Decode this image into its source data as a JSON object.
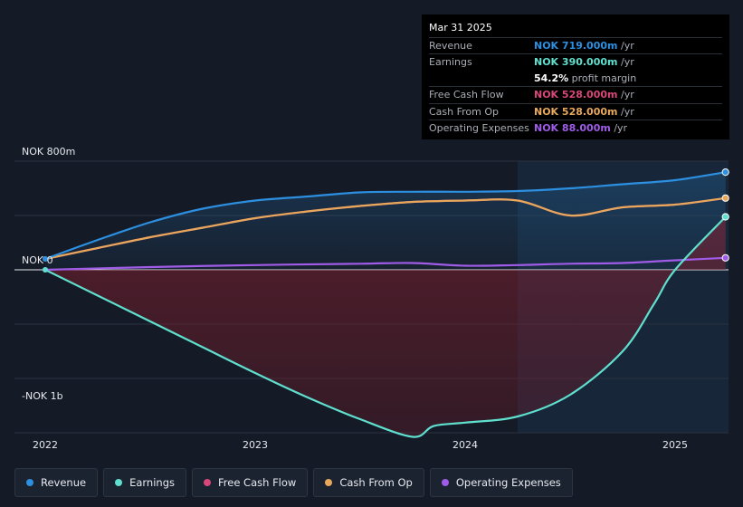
{
  "tooltip": {
    "date": "Mar 31 2025",
    "rows": [
      {
        "label": "Revenue",
        "value": "NOK 719.000m",
        "unit": "/yr",
        "color": "#2d8fe0"
      },
      {
        "label": "Earnings",
        "value": "NOK 390.000m",
        "unit": "/yr",
        "color": "#5fe0cf"
      },
      {
        "label": "Free Cash Flow",
        "value": "NOK 528.000m",
        "unit": "/yr",
        "color": "#d9477a"
      },
      {
        "label": "Cash From Op",
        "value": "NOK 528.000m",
        "unit": "/yr",
        "color": "#e8a85c"
      },
      {
        "label": "Operating Expenses",
        "value": "NOK 88.000m",
        "unit": "/yr",
        "color": "#a05ce8"
      }
    ],
    "margin_value": "54.2%",
    "margin_label": "profit margin"
  },
  "legend": [
    {
      "label": "Revenue",
      "color": "#2d8fe0"
    },
    {
      "label": "Earnings",
      "color": "#5fe0cf"
    },
    {
      "label": "Free Cash Flow",
      "color": "#d9477a"
    },
    {
      "label": "Cash From Op",
      "color": "#e8a85c"
    },
    {
      "label": "Operating Expenses",
      "color": "#a05ce8"
    }
  ],
  "chart_data": {
    "type": "area",
    "title": "",
    "xlabel": "",
    "ylabel": "",
    "y_tick_labels": [
      {
        "value": 800,
        "label": "NOK 800m"
      },
      {
        "value": 0,
        "label": "NOK 0"
      },
      {
        "value": -1000,
        "label": "-NOK 1b"
      }
    ],
    "x_tick_labels": [
      {
        "value": 2022.0,
        "label": "2022"
      },
      {
        "value": 2023.0,
        "label": "2023"
      },
      {
        "value": 2024.0,
        "label": "2024"
      },
      {
        "value": 2025.0,
        "label": "2025"
      }
    ],
    "xlim": [
      2021.86,
      2025.24
    ],
    "ylim": [
      -1200,
      800
    ],
    "highlight_start": 2024.25,
    "grid": true,
    "legend_position": "bottom",
    "series": [
      {
        "name": "Revenue",
        "color": "#2d8fe0",
        "x": [
          2022.0,
          2022.25,
          2022.5,
          2022.75,
          2023.0,
          2023.25,
          2023.5,
          2023.75,
          2024.0,
          2024.25,
          2024.5,
          2024.75,
          2025.0,
          2025.24
        ],
        "y": [
          80,
          220,
          350,
          450,
          510,
          540,
          570,
          575,
          575,
          580,
          600,
          630,
          660,
          719
        ]
      },
      {
        "name": "Earnings",
        "color": "#5fe0cf",
        "x": [
          2022.0,
          2022.25,
          2022.5,
          2022.75,
          2023.0,
          2023.25,
          2023.5,
          2023.75,
          2023.85,
          2024.0,
          2024.25,
          2024.5,
          2024.75,
          2024.9,
          2025.0,
          2025.24
        ],
        "y": [
          0,
          -190,
          -380,
          -570,
          -760,
          -940,
          -1100,
          -1230,
          -1150,
          -1125,
          -1080,
          -920,
          -600,
          -250,
          0,
          390
        ]
      },
      {
        "name": "Free Cash Flow",
        "color": "#d9477a",
        "x": [
          2022.0,
          2022.25,
          2022.5,
          2022.75,
          2023.0,
          2023.25,
          2023.5,
          2023.75,
          2024.0,
          2024.25,
          2024.5,
          2024.75,
          2025.0,
          2025.24
        ],
        "y": [
          80,
          160,
          240,
          310,
          380,
          430,
          470,
          500,
          510,
          510,
          400,
          460,
          480,
          528
        ]
      },
      {
        "name": "Cash From Op",
        "color": "#e8a85c",
        "x": [
          2022.0,
          2022.25,
          2022.5,
          2022.75,
          2023.0,
          2023.25,
          2023.5,
          2023.75,
          2024.0,
          2024.25,
          2024.5,
          2024.75,
          2025.0,
          2025.24
        ],
        "y": [
          80,
          160,
          240,
          310,
          380,
          430,
          470,
          500,
          510,
          510,
          400,
          460,
          480,
          528
        ]
      },
      {
        "name": "Operating Expenses",
        "color": "#a05ce8",
        "x": [
          2022.0,
          2022.5,
          2023.0,
          2023.5,
          2023.75,
          2024.0,
          2024.25,
          2024.5,
          2024.75,
          2025.0,
          2025.24
        ],
        "y": [
          0,
          20,
          35,
          45,
          50,
          30,
          35,
          45,
          50,
          70,
          88
        ]
      }
    ]
  }
}
